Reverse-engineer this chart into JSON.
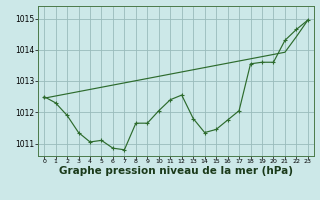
{
  "background_color": "#cce8e8",
  "grid_color": "#99bbbb",
  "line_color": "#2d6b2d",
  "xlabel": "Graphe pression niveau de la mer (hPa)",
  "ylim": [
    1010.6,
    1015.4
  ],
  "yticks": [
    1011,
    1012,
    1013,
    1014,
    1015
  ],
  "xlim": [
    -0.5,
    23.5
  ],
  "xticks": [
    0,
    1,
    2,
    3,
    4,
    5,
    6,
    7,
    8,
    9,
    10,
    11,
    12,
    13,
    14,
    15,
    16,
    17,
    18,
    19,
    20,
    21,
    22,
    23
  ],
  "jagged": [
    1012.5,
    1012.3,
    1011.9,
    1011.35,
    1011.05,
    1011.1,
    1010.85,
    1010.8,
    1011.65,
    1011.65,
    1012.05,
    1012.4,
    1012.55,
    1011.8,
    1011.35,
    1011.45,
    1011.75,
    1012.05,
    1013.55,
    1013.6,
    1013.6,
    1014.3,
    1014.65,
    1014.95
  ],
  "trend": [
    1012.45,
    1012.52,
    1012.59,
    1012.66,
    1012.73,
    1012.8,
    1012.87,
    1012.94,
    1013.01,
    1013.08,
    1013.15,
    1013.22,
    1013.29,
    1013.36,
    1013.43,
    1013.5,
    1013.57,
    1013.64,
    1013.71,
    1013.78,
    1013.85,
    1013.92,
    1014.42,
    1014.95
  ]
}
